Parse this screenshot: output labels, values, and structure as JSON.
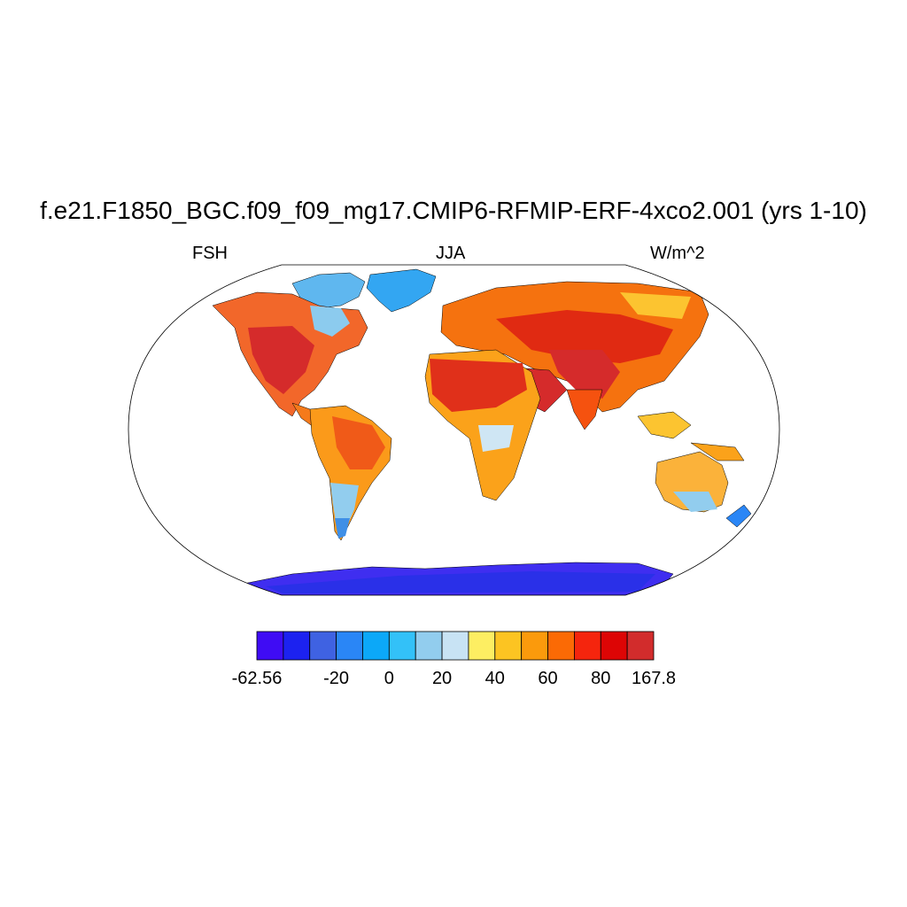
{
  "map": {
    "title": "f.e21.F1850_BGC.f09_f09_mg17.CMIP6-RFMIP-ERF-4xco2.001 (yrs 1-10)",
    "left_label": "FSH",
    "center_label": "JJA",
    "right_label": "W/m^2",
    "projection": "robinson",
    "fill_style": "gridded land values, ocean blank"
  },
  "colorbar": {
    "colors": [
      "#3f0cf4",
      "#1c22f0",
      "#3f62e2",
      "#2a86f6",
      "#0ca8f8",
      "#33c1f8",
      "#92cdee",
      "#c8e3f4",
      "#fdee62",
      "#fcc422",
      "#fb9a0c",
      "#fb6a05",
      "#f5250d",
      "#dd0505",
      "#d22c2c"
    ],
    "tick_labels": [
      "-62.56",
      "-20",
      "0",
      "20",
      "40",
      "60",
      "80",
      "167.8"
    ],
    "tick_values": [
      -62.56,
      -20,
      0,
      20,
      40,
      60,
      80,
      167.8
    ]
  }
}
